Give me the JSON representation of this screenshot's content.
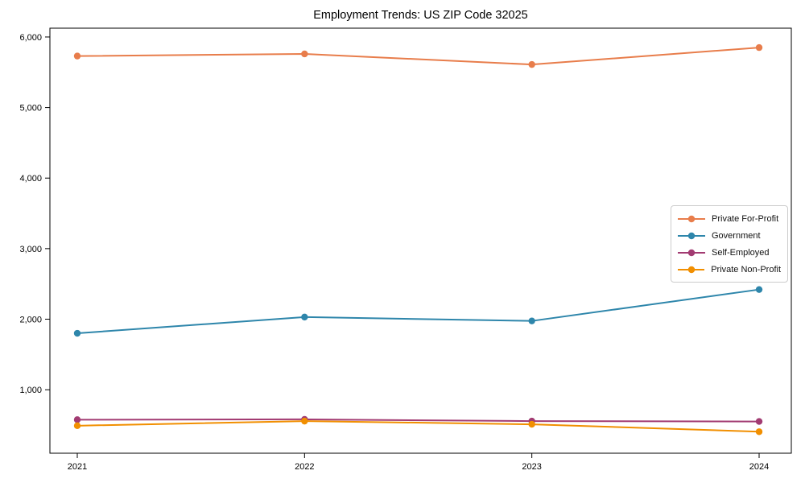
{
  "chart_data": {
    "type": "line",
    "title": "Employment Trends: US ZIP Code 32025",
    "x": [
      "2021",
      "2022",
      "2023",
      "2024"
    ],
    "series": [
      {
        "name": "Private For-Profit",
        "color": "#E87D4B",
        "values": [
          5730,
          5760,
          5610,
          5850
        ]
      },
      {
        "name": "Government",
        "color": "#2E86AB",
        "values": [
          1800,
          2030,
          1975,
          2420
        ]
      },
      {
        "name": "Self-Employed",
        "color": "#A23B72",
        "values": [
          575,
          580,
          555,
          550
        ]
      },
      {
        "name": "Private Non-Profit",
        "color": "#F18F01",
        "values": [
          490,
          555,
          510,
          405
        ]
      }
    ],
    "y_ticks": [
      1000,
      2000,
      3000,
      4000,
      5000,
      6000
    ],
    "y_tick_labels": [
      "1,000",
      "2,000",
      "3,000",
      "4,000",
      "5,000",
      "6,000"
    ],
    "ylim": [
      100,
      6125
    ],
    "xlabel": "",
    "ylabel": "",
    "grid": false,
    "legend_position": "center right",
    "axis_color": "#000000",
    "background_color": "#ffffff"
  }
}
